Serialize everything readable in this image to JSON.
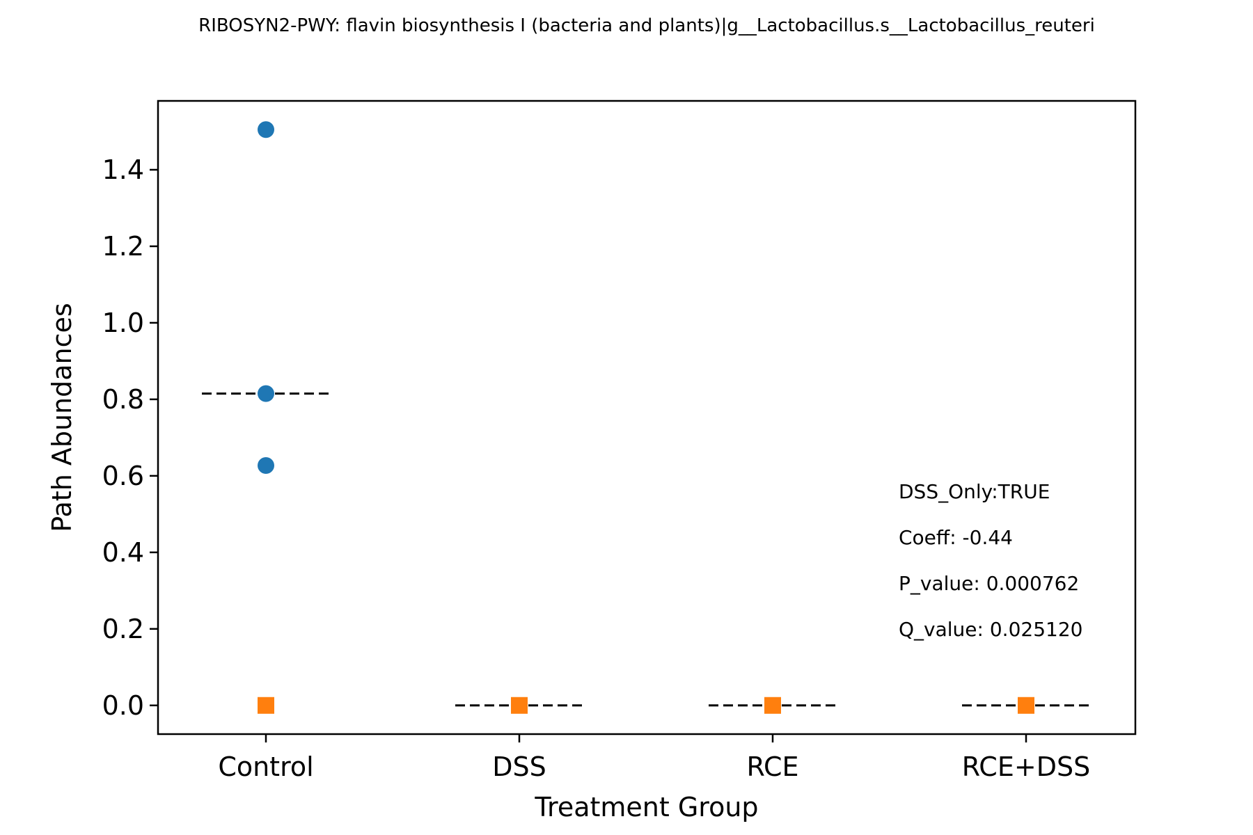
{
  "chart_data": {
    "type": "scatter",
    "title": "RIBOSYN2-PWY: flavin biosynthesis I (bacteria and plants)|g__Lactobacillus.s__Lactobacillus_reuteri",
    "xlabel": "Treatment Group",
    "ylabel": "Path Abundances",
    "categories": [
      "Control",
      "DSS",
      "RCE",
      "RCE+DSS"
    ],
    "ylim": [
      -0.075,
      1.58
    ],
    "yticks": [
      0.0,
      0.2,
      0.4,
      0.6,
      0.8,
      1.0,
      1.2,
      1.4
    ],
    "ytick_labels": [
      "0.0",
      "0.2",
      "0.4",
      "0.6",
      "0.8",
      "1.0",
      "1.2",
      "1.4"
    ],
    "grid": false,
    "series": [
      {
        "marker": "circle",
        "color": "#1f77b4",
        "points": [
          {
            "category": "Control",
            "y": 1.505
          },
          {
            "category": "Control",
            "y": 0.815
          },
          {
            "category": "Control",
            "y": 0.627
          }
        ]
      },
      {
        "marker": "square",
        "color": "#ff7f0e",
        "points": [
          {
            "category": "Control",
            "y": 0.0
          },
          {
            "category": "DSS",
            "y": 0.0
          },
          {
            "category": "RCE",
            "y": 0.0
          },
          {
            "category": "RCE+DSS",
            "y": 0.0
          }
        ]
      }
    ],
    "medians": [
      {
        "category": "Control",
        "y": 0.815
      },
      {
        "category": "DSS",
        "y": 0.0
      },
      {
        "category": "RCE",
        "y": 0.0
      },
      {
        "category": "RCE+DSS",
        "y": 0.0
      }
    ],
    "annotations": [
      "DSS_Only:TRUE",
      "Coeff: -0.44",
      "P_value: 0.000762",
      "Q_value: 0.025120"
    ]
  }
}
